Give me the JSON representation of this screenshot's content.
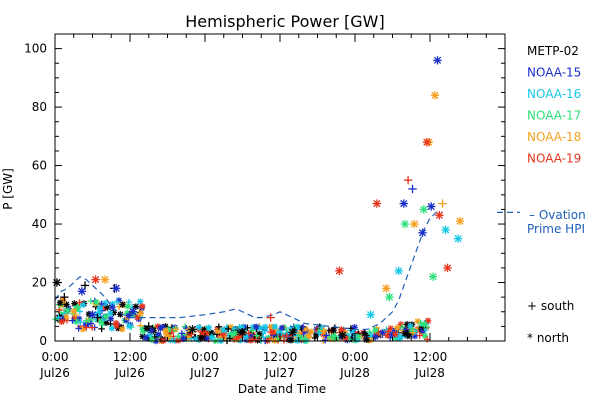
{
  "chart_data": {
    "type": "scatter",
    "title": "Hemispheric Power [GW]",
    "ylabel": "P [GW]",
    "xlabel": "Date and Time",
    "ylim": [
      0,
      105
    ],
    "yticks": [
      0,
      20,
      40,
      60,
      80,
      100
    ],
    "xlim": [
      "2012-07-26 00:00",
      "2012-07-28 23:55"
    ],
    "xticks": [
      {
        "time": "0:00",
        "date": "Jul26"
      },
      {
        "time": "12:00",
        "date": "Jul26"
      },
      {
        "time": "0:00",
        "date": "Jul27"
      },
      {
        "time": "12:00",
        "date": "Jul27"
      },
      {
        "time": "0:00",
        "date": "Jul28"
      },
      {
        "time": "12:00",
        "date": "Jul28"
      }
    ],
    "legend_position": "right",
    "series": [
      {
        "name": "METP-02",
        "color": "#000000"
      },
      {
        "name": "NOAA-15",
        "color": "#1a2ec8"
      },
      {
        "name": "NOAA-16",
        "color": "#16c8e6"
      },
      {
        "name": "NOAA-17",
        "color": "#2ee07a"
      },
      {
        "name": "NOAA-18",
        "color": "#f5a020"
      },
      {
        "name": "NOAA-19",
        "color": "#e8341c"
      }
    ],
    "ovation": {
      "label_line1": "Ovation",
      "label_line2": "Prime HPI",
      "color": "#1f5fb8"
    },
    "markers": {
      "south_symbol": "+",
      "south_label": "south",
      "north_symbol": "*",
      "north_label": "north"
    },
    "points": [
      {
        "s": 0,
        "h": 0.3,
        "v": 20,
        "m": "*"
      },
      {
        "s": 0,
        "h": 1.5,
        "v": 15,
        "m": "+"
      },
      {
        "s": 0,
        "h": 4.8,
        "v": 19,
        "m": "+"
      },
      {
        "s": 0,
        "h": 6.8,
        "v": 8,
        "m": "+"
      },
      {
        "s": 0,
        "h": 9.5,
        "v": 18,
        "m": "+"
      },
      {
        "s": 0,
        "h": 15.0,
        "v": 5,
        "m": "+"
      },
      {
        "s": 0,
        "h": 22.0,
        "v": 4,
        "m": "*"
      },
      {
        "s": 0,
        "h": 30.0,
        "v": 3,
        "m": "*"
      },
      {
        "s": 0,
        "h": 38.0,
        "v": 3,
        "m": "*"
      },
      {
        "s": 0,
        "h": 46.0,
        "v": 2,
        "m": "*"
      },
      {
        "s": 1,
        "h": 4.3,
        "v": 17,
        "m": "*"
      },
      {
        "s": 1,
        "h": 6.0,
        "v": 9,
        "m": "*"
      },
      {
        "s": 1,
        "h": 9.8,
        "v": 18,
        "m": "*"
      },
      {
        "s": 1,
        "h": 12.5,
        "v": 10,
        "m": "*"
      },
      {
        "s": 1,
        "h": 55.8,
        "v": 47,
        "m": "*"
      },
      {
        "s": 1,
        "h": 58.8,
        "v": 37,
        "m": "*"
      },
      {
        "s": 1,
        "h": 60.2,
        "v": 46,
        "m": "*"
      },
      {
        "s": 1,
        "h": 61.2,
        "v": 96,
        "m": "*"
      },
      {
        "s": 1,
        "h": 57.2,
        "v": 52,
        "m": "+"
      },
      {
        "s": 2,
        "h": 50.5,
        "v": 9,
        "m": "*"
      },
      {
        "s": 2,
        "h": 55.0,
        "v": 24,
        "m": "*"
      },
      {
        "s": 2,
        "h": 62.5,
        "v": 38,
        "m": "*"
      },
      {
        "s": 2,
        "h": 64.5,
        "v": 35,
        "m": "*"
      },
      {
        "s": 3,
        "h": 53.5,
        "v": 15,
        "m": "*"
      },
      {
        "s": 3,
        "h": 56.0,
        "v": 40,
        "m": "*"
      },
      {
        "s": 3,
        "h": 59.0,
        "v": 45,
        "m": "*"
      },
      {
        "s": 3,
        "h": 60.5,
        "v": 22,
        "m": "*"
      },
      {
        "s": 4,
        "h": 8.0,
        "v": 21,
        "m": "*"
      },
      {
        "s": 4,
        "h": 53.0,
        "v": 18,
        "m": "*"
      },
      {
        "s": 4,
        "h": 57.5,
        "v": 40,
        "m": "*"
      },
      {
        "s": 4,
        "h": 59.8,
        "v": 68,
        "m": "*"
      },
      {
        "s": 4,
        "h": 60.8,
        "v": 84,
        "m": "*"
      },
      {
        "s": 4,
        "h": 62.0,
        "v": 47,
        "m": "+"
      },
      {
        "s": 4,
        "h": 64.8,
        "v": 41,
        "m": "*"
      },
      {
        "s": 5,
        "h": 6.5,
        "v": 21,
        "m": "*"
      },
      {
        "s": 5,
        "h": 34.5,
        "v": 8,
        "m": "+"
      },
      {
        "s": 5,
        "h": 45.5,
        "v": 24,
        "m": "*"
      },
      {
        "s": 5,
        "h": 51.5,
        "v": 47,
        "m": "*"
      },
      {
        "s": 5,
        "h": 56.5,
        "v": 55,
        "m": "+"
      },
      {
        "s": 5,
        "h": 59.5,
        "v": 68,
        "m": "*"
      },
      {
        "s": 5,
        "h": 61.5,
        "v": 43,
        "m": "*"
      },
      {
        "s": 5,
        "h": 62.8,
        "v": 25,
        "m": "*"
      }
    ]
  }
}
